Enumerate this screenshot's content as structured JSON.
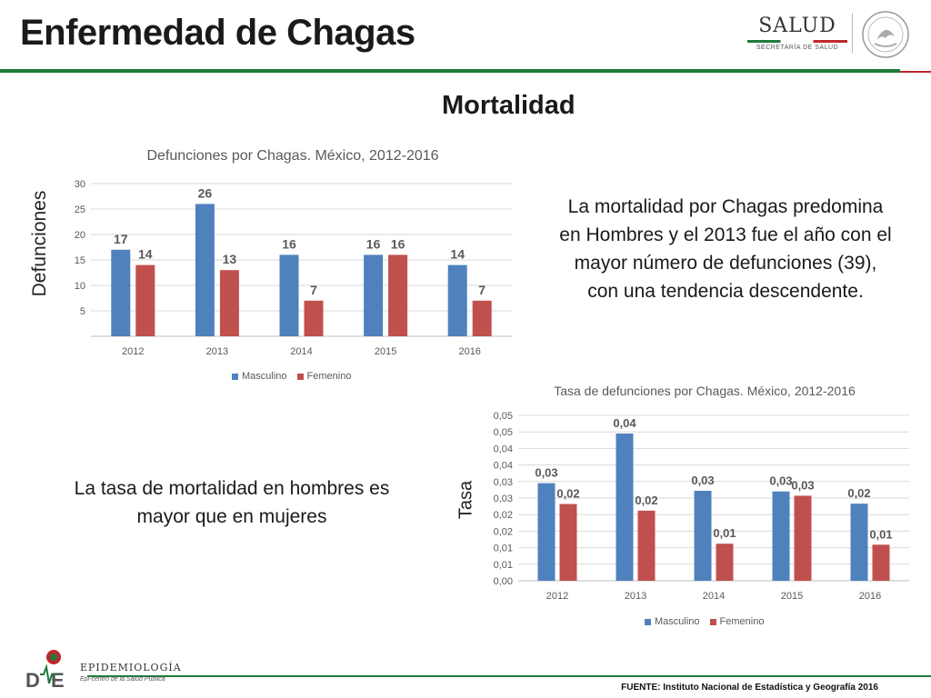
{
  "header": {
    "title": "Enfermedad de Chagas",
    "logo_text": "SALUD",
    "logo_subtext": "SECRETARÍA DE SALUD"
  },
  "section_title": "Mortalidad",
  "texts": {
    "mortality_summary": "La mortalidad por Chagas predomina en Hombres y el 2013 fue el año con el mayor número de defunciones (39), con una tendencia descendente.",
    "rate_summary": "La tasa de mortalidad en hombres es mayor que en mujeres"
  },
  "footer": {
    "org_name": "EPIDEMIOLOGÍA",
    "org_sub": "Epi-centro de la Salud Pública",
    "source": "FUENTE: Instituto Nacional de Estadística y Geografía 2016"
  },
  "colors": {
    "masculino": "#4f81bd",
    "femenino": "#c0504d",
    "green": "#1f7a3c",
    "red": "#c0272d"
  },
  "chart_data": [
    {
      "type": "bar",
      "title": "Defunciones por Chagas. México, 2012-2016",
      "ylabel": "Defunciones",
      "xlabel": "",
      "categories": [
        "2012",
        "2013",
        "2014",
        "2015",
        "2016"
      ],
      "series": [
        {
          "name": "Masculino",
          "values": [
            17,
            26,
            16,
            16,
            14
          ],
          "labels": [
            "17",
            "26",
            "16",
            "16",
            "14"
          ]
        },
        {
          "name": "Femenino",
          "values": [
            14,
            13,
            7,
            16,
            7
          ],
          "labels": [
            "14",
            "13",
            "7",
            "16",
            "7"
          ]
        }
      ],
      "ylim": [
        0,
        30
      ],
      "yticks": [
        5,
        10,
        15,
        20,
        25,
        30
      ],
      "ytick_labels": [
        "5",
        "10",
        "15",
        "20",
        "25",
        "30"
      ],
      "grid": true,
      "legend": "bottom"
    },
    {
      "type": "bar",
      "title": "Tasa de defunciones por Chagas. México, 2012-2016",
      "ylabel": "Tasa",
      "xlabel": "",
      "categories": [
        "2012",
        "2013",
        "2014",
        "2015",
        "2016"
      ],
      "series": [
        {
          "name": "Masculino",
          "values": [
            0.0295,
            0.0445,
            0.0272,
            0.027,
            0.0233
          ],
          "labels": [
            "0,03",
            "0,04",
            "0,03",
            "0,03",
            "0,02"
          ]
        },
        {
          "name": "Femenino",
          "values": [
            0.0232,
            0.0212,
            0.0112,
            0.0257,
            0.0109
          ],
          "labels": [
            "0,02",
            "0,02",
            "0,01",
            "0,03",
            "0,01"
          ]
        }
      ],
      "ylim": [
        0,
        0.05
      ],
      "yticks": [
        0,
        0.005,
        0.01,
        0.015,
        0.02,
        0.025,
        0.03,
        0.035,
        0.04,
        0.045,
        0.05
      ],
      "ytick_labels": [
        "0,00",
        "0,01",
        "0,01",
        "0,02",
        "0,02",
        "0,03",
        "0,03",
        "0,04",
        "0,04",
        "0,05",
        "0,05"
      ],
      "grid": true,
      "legend": "bottom"
    }
  ]
}
